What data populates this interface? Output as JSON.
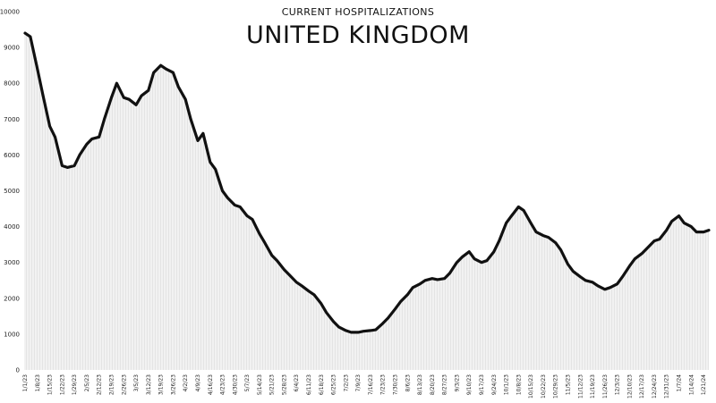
{
  "chart_data": {
    "type": "line",
    "subtitle": "CURRENT HOSPITALIZATIONS",
    "title": "UNITED KINGDOM",
    "xlabel": "",
    "ylabel": "",
    "ylim": [
      0,
      10000
    ],
    "y_ticks": [
      "0",
      "1000",
      "2000",
      "3000",
      "4000",
      "5000",
      "6000",
      "7000",
      "8000",
      "9000",
      "10000"
    ],
    "x_tick_labels": [
      "1/1/23",
      "1/8/23",
      "1/15/23",
      "1/22/23",
      "1/29/23",
      "2/5/23",
      "2/12/23",
      "2/19/23",
      "2/26/23",
      "3/5/23",
      "3/12/23",
      "3/19/23",
      "3/26/23",
      "4/2/23",
      "4/9/23",
      "4/16/23",
      "4/23/23",
      "4/30/23",
      "5/7/23",
      "5/14/23",
      "5/21/23",
      "5/28/23",
      "6/4/23",
      "6/11/23",
      "6/18/23",
      "6/25/23",
      "7/2/23",
      "7/9/23",
      "7/16/23",
      "7/23/23",
      "7/30/23",
      "8/6/23",
      "8/13/23",
      "8/20/23",
      "8/27/23",
      "9/3/23",
      "9/10/23",
      "9/17/23",
      "9/24/23",
      "10/1/23",
      "10/8/23",
      "10/15/23",
      "10/22/23",
      "10/29/23",
      "11/5/23",
      "11/12/23",
      "11/19/23",
      "11/26/23",
      "12/3/23",
      "12/10/23",
      "12/17/23",
      "12/24/23",
      "12/31/23",
      "1/7/24",
      "1/14/24",
      "1/21/24"
    ],
    "grid": false,
    "legend": "none",
    "colors": {
      "line": "#111111",
      "fill_stripes": "#c8c8c8",
      "background": "#ffffff"
    },
    "series": [
      {
        "x_dates": [
          "1/1/23",
          "1/4/23",
          "1/8/23",
          "1/11/23",
          "1/15/23",
          "1/18/23",
          "1/22/23",
          "1/25/23",
          "1/29/23",
          "2/1/23",
          "2/5/23",
          "2/8/23",
          "2/12/23",
          "2/15/23",
          "2/19/23",
          "2/22/23",
          "2/26/23",
          "3/1/23",
          "3/5/23",
          "3/8/23",
          "3/12/23",
          "3/15/23",
          "3/19/23",
          "3/22/23",
          "3/26/23",
          "3/29/23",
          "4/2/23",
          "4/5/23",
          "4/9/23",
          "4/12/23",
          "4/16/23",
          "4/19/23",
          "4/23/23",
          "4/26/23",
          "4/30/23",
          "5/3/23",
          "5/7/23",
          "5/10/23",
          "5/14/23",
          "5/17/23",
          "5/21/23",
          "5/24/23",
          "5/28/23",
          "5/31/23",
          "6/4/23",
          "6/7/23",
          "6/11/23",
          "6/14/23",
          "6/18/23",
          "6/21/23",
          "6/25/23",
          "6/28/23",
          "7/2/23",
          "7/5/23",
          "7/9/23",
          "7/12/23",
          "7/16/23",
          "7/19/23",
          "7/23/23",
          "7/26/23",
          "7/30/23",
          "8/2/23",
          "8/6/23",
          "8/9/23",
          "8/13/23",
          "8/16/23",
          "8/20/23",
          "8/23/23",
          "8/27/23",
          "8/30/23",
          "9/3/23",
          "9/6/23",
          "9/10/23",
          "9/13/23",
          "9/17/23",
          "9/20/23",
          "9/24/23",
          "9/27/23",
          "10/1/23",
          "10/4/23",
          "10/8/23",
          "10/11/23",
          "10/15/23",
          "10/18/23",
          "10/22/23",
          "10/25/23",
          "10/29/23",
          "11/1/23",
          "11/5/23",
          "11/8/23",
          "11/12/23",
          "11/15/23",
          "11/19/23",
          "11/22/23",
          "11/26/23",
          "11/29/23",
          "12/3/23",
          "12/6/23",
          "12/10/23",
          "12/13/23",
          "12/17/23",
          "12/20/23",
          "12/24/23",
          "12/27/23",
          "12/31/23",
          "1/3/24",
          "1/7/24",
          "1/10/24",
          "1/14/24",
          "1/17/24",
          "1/21/24",
          "1/24/24"
        ],
        "values": [
          9400,
          9300,
          8400,
          7700,
          6800,
          6500,
          5700,
          5650,
          5700,
          6000,
          6300,
          6450,
          6500,
          7000,
          7600,
          8000,
          7600,
          7550,
          7400,
          7650,
          7800,
          8300,
          8500,
          8400,
          8300,
          7900,
          7550,
          7000,
          6400,
          6600,
          5800,
          5600,
          5000,
          4800,
          4600,
          4550,
          4300,
          4200,
          3800,
          3550,
          3200,
          3050,
          2800,
          2650,
          2450,
          2350,
          2200,
          2100,
          1850,
          1600,
          1350,
          1200,
          1100,
          1050,
          1050,
          1080,
          1100,
          1120,
          1300,
          1450,
          1700,
          1900,
          2100,
          2300,
          2400,
          2500,
          2550,
          2520,
          2550,
          2700,
          3000,
          3150,
          3300,
          3100,
          3000,
          3050,
          3300,
          3600,
          4100,
          4300,
          4550,
          4450,
          4100,
          3850,
          3750,
          3700,
          3550,
          3350,
          2950,
          2750,
          2600,
          2500,
          2450,
          2350,
          2250,
          2300,
          2400,
          2600,
          2900,
          3100,
          3250,
          3400,
          3600,
          3650,
          3900,
          4150,
          4300,
          4100,
          4000,
          3850,
          3850,
          3900
        ]
      }
    ]
  }
}
